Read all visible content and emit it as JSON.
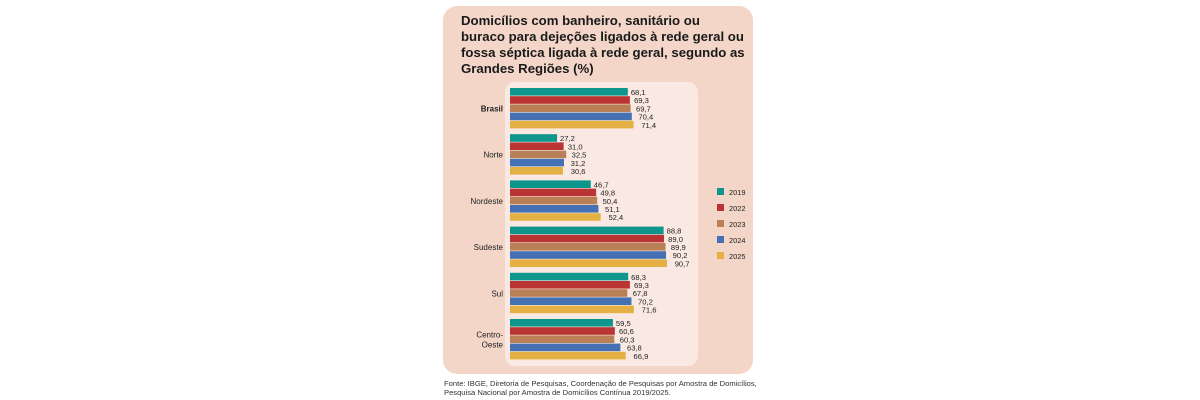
{
  "chart_data": {
    "type": "bar",
    "orientation": "horizontal",
    "title": "Domicílios com banheiro, sanitário ou buraco para dejeções ligados à rede geral ou fossa séptica ligada à rede geral, segundo as Grandes Regiões (%)",
    "categories": [
      "Brasil",
      "Norte",
      "Nordeste",
      "Sudeste",
      "Sul",
      "Centro-Oeste"
    ],
    "series": [
      {
        "name": "2019",
        "color": "#0e968c",
        "values": [
          68.1,
          27.2,
          46.7,
          88.8,
          68.3,
          59.5
        ]
      },
      {
        "name": "2022",
        "color": "#bb3434",
        "values": [
          69.3,
          31.0,
          49.8,
          89.0,
          69.3,
          60.6
        ]
      },
      {
        "name": "2023",
        "color": "#b98058",
        "values": [
          69.7,
          32.5,
          50.4,
          89.9,
          67.8,
          60.3
        ]
      },
      {
        "name": "2024",
        "color": "#4570b4",
        "values": [
          70.4,
          31.2,
          51.1,
          90.2,
          70.2,
          63.8
        ]
      },
      {
        "name": "2025",
        "color": "#e5b043",
        "values": [
          71.4,
          30.6,
          52.4,
          90.7,
          71.6,
          66.9
        ]
      }
    ],
    "legend": "right",
    "xlim": [
      0,
      100
    ],
    "source": "Fonte: IBGE, Diretoria de Pesquisas, Coordenação de Pesquisas por Amostra de Domicílios, Pesquisa Nacional por Amostra de Domicílios Contínua 2019/2025."
  }
}
